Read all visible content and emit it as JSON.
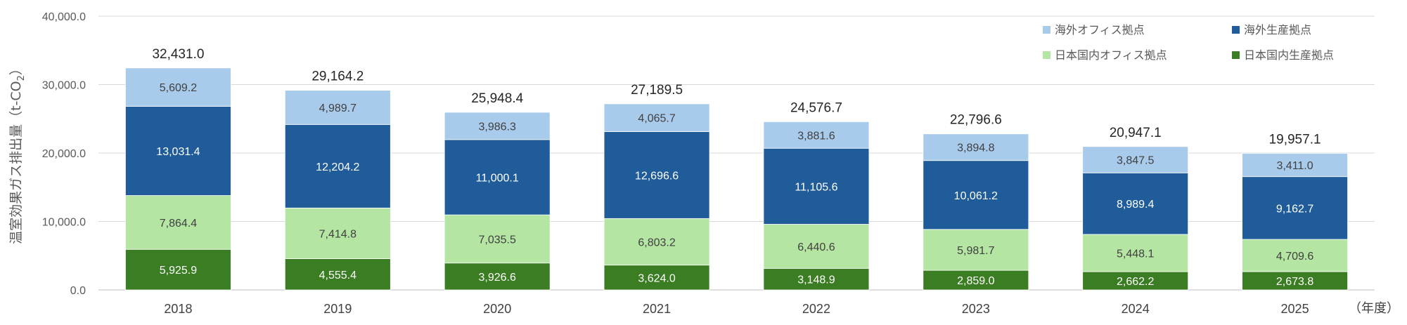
{
  "chart_data": {
    "type": "bar",
    "stacked": true,
    "ylabel_main": "温室効果ガス排出量（t-CO",
    "ylabel_sub": "2",
    "ylabel_end": "）",
    "x_unit": "（年度）",
    "ylim": [
      0,
      40000
    ],
    "yticks": [
      "0.0",
      "10,000.0",
      "20,000.0",
      "30,000.0",
      "40,000.0"
    ],
    "ytick_values": [
      0,
      10000,
      20000,
      30000,
      40000
    ],
    "categories": [
      "2018",
      "2019",
      "2020",
      "2021",
      "2022",
      "2023",
      "2024",
      "2025"
    ],
    "totals": [
      "32,431.0",
      "29,164.2",
      "25,948.4",
      "27,189.5",
      "24,576.7",
      "22,796.6",
      "20,947.1",
      "19,957.1"
    ],
    "series": [
      {
        "name": "日本国内生産拠点",
        "color": "#3a7d22",
        "label_color": "#ffffff",
        "values": [
          5925.9,
          4555.4,
          3926.6,
          3624.0,
          3148.9,
          2859.0,
          2662.2,
          2673.8
        ],
        "labels": [
          "5,925.9",
          "4,555.4",
          "3,926.6",
          "3,624.0",
          "3,148.9",
          "2,859.0",
          "2,662.2",
          "2,673.8"
        ]
      },
      {
        "name": "日本国内オフィス拠点",
        "color": "#b4e5a2",
        "label_color": "#404040",
        "values": [
          7864.4,
          7414.8,
          7035.5,
          6803.2,
          6440.6,
          5981.7,
          5448.1,
          4709.6
        ],
        "labels": [
          "7,864.4",
          "7,414.8",
          "7,035.5",
          "6,803.2",
          "6,440.6",
          "5,981.7",
          "5,448.1",
          "4,709.6"
        ]
      },
      {
        "name": "海外生産拠点",
        "color": "#1f5c99",
        "label_color": "#ffffff",
        "values": [
          13031.4,
          12204.2,
          11000.1,
          12696.6,
          11105.6,
          10061.2,
          8989.4,
          9162.7
        ],
        "labels": [
          "13,031.4",
          "12,204.2",
          "11,000.1",
          "12,696.6",
          "11,105.6",
          "10,061.2",
          "8,989.4",
          "9,162.7"
        ]
      },
      {
        "name": "海外オフィス拠点",
        "color": "#a9cbeb",
        "label_color": "#404040",
        "values": [
          5609.2,
          4989.7,
          3986.3,
          4065.7,
          3881.6,
          3894.8,
          3847.5,
          3411.0
        ],
        "labels": [
          "5,609.2",
          "4,989.7",
          "3,986.3",
          "4,065.7",
          "3,881.6",
          "3,894.8",
          "3,847.5",
          "3,411.0"
        ]
      }
    ],
    "legend": [
      {
        "series": 3,
        "label": "海外オフィス拠点"
      },
      {
        "series": 2,
        "label": "海外生産拠点"
      },
      {
        "series": 1,
        "label": "日本国内オフィス拠点"
      },
      {
        "series": 0,
        "label": "日本国内生産拠点"
      }
    ],
    "grid": true,
    "legend_position": "top-right"
  }
}
